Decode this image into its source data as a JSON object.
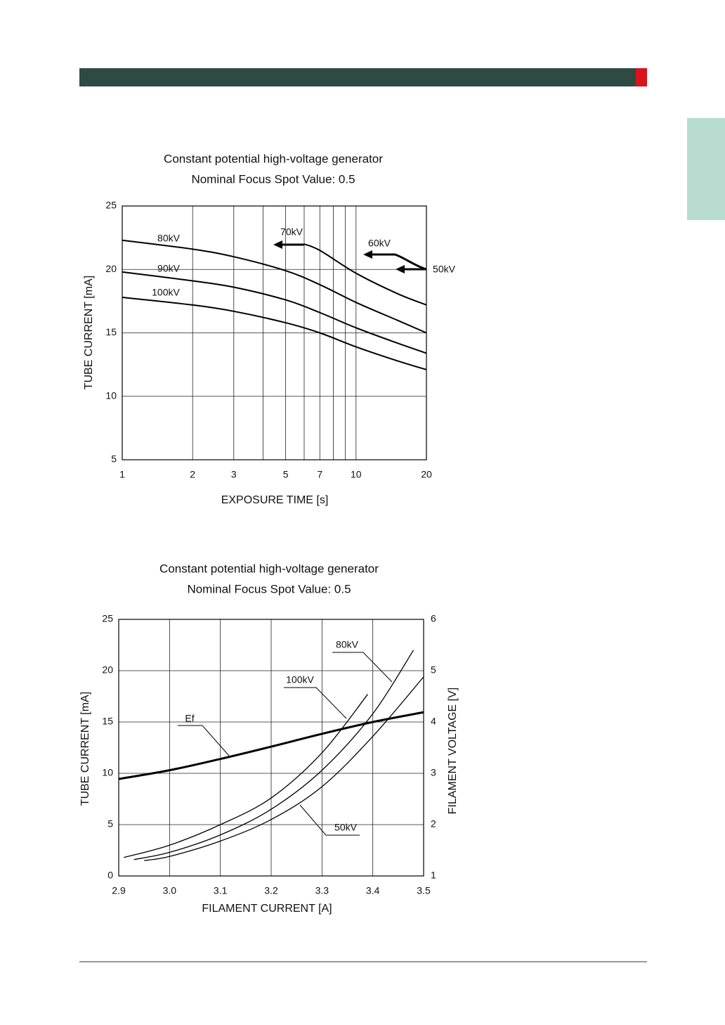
{
  "chart_data": [
    {
      "type": "line",
      "title": "Constant potential high-voltage generator",
      "subtitle": "Nominal Focus Spot Value: 0.5",
      "xlabel": "EXPOSURE TIME  [s]",
      "ylabel": "TUBE CURRENT  [mA]",
      "xscale": "log",
      "xlim": [
        1,
        20
      ],
      "xticks": [
        1,
        2,
        3,
        5,
        7,
        10,
        20
      ],
      "x_minor_grid": [
        4,
        6,
        8,
        9
      ],
      "ylim": [
        5,
        25
      ],
      "yticks": [
        5,
        10,
        15,
        20,
        25
      ],
      "grid": true,
      "series": [
        {
          "name": "80kV",
          "color": "#000000",
          "line_width": 2,
          "x": [
            1,
            2,
            3,
            5,
            7,
            10,
            15,
            20
          ],
          "values": [
            22.3,
            21.6,
            21.0,
            19.9,
            18.8,
            17.4,
            16.0,
            15.0
          ]
        },
        {
          "name": "90kV",
          "color": "#000000",
          "line_width": 2,
          "x": [
            1,
            2,
            3,
            5,
            7,
            10,
            15,
            20
          ],
          "values": [
            19.8,
            19.1,
            18.6,
            17.6,
            16.6,
            15.4,
            14.2,
            13.4
          ]
        },
        {
          "name": "100kV",
          "color": "#000000",
          "line_width": 2,
          "x": [
            1,
            2,
            3,
            5,
            7,
            10,
            15,
            20
          ],
          "values": [
            17.8,
            17.2,
            16.7,
            15.8,
            15.0,
            13.9,
            12.8,
            12.1
          ]
        },
        {
          "name": "70kV",
          "color": "#000000",
          "line_width": 2,
          "x": [
            6,
            7,
            10,
            15,
            20
          ],
          "values": [
            22.0,
            21.5,
            19.7,
            18.1,
            17.2
          ]
        }
      ],
      "annotations": [
        "60kV",
        "50kV"
      ]
    },
    {
      "type": "line",
      "title": "Constant potential high-voltage generator",
      "subtitle": "Nominal Focus Spot Value: 0.5",
      "xlabel": "FILAMENT CURRENT  [A]",
      "ylabel": "TUBE CURRENT  [mA]",
      "y2label": "FILAMENT VOLTAGE  [V]",
      "xlim": [
        2.9,
        3.5
      ],
      "xticks": [
        2.9,
        {
          "value": 3,
          "label": "3.0"
        },
        3.1,
        3.2,
        3.3,
        3.4,
        3.5
      ],
      "ylim": [
        0,
        25
      ],
      "yticks": [
        0,
        5,
        10,
        15,
        20,
        25
      ],
      "y2lim": [
        1,
        6
      ],
      "y2ticks": [
        1,
        2,
        3,
        4,
        5,
        6
      ],
      "grid": true,
      "series": [
        {
          "name": "100kV",
          "color": "#000000",
          "line_width": 1.3,
          "x": [
            2.91,
            3.0,
            3.1,
            3.2,
            3.3,
            3.39
          ],
          "values": [
            1.8,
            3.0,
            5.0,
            7.6,
            12.0,
            17.7
          ]
        },
        {
          "name": "80kV",
          "color": "#000000",
          "line_width": 1.3,
          "x": [
            2.93,
            3.0,
            3.1,
            3.2,
            3.3,
            3.4,
            3.48
          ],
          "values": [
            1.6,
            2.3,
            4.0,
            6.5,
            10.3,
            15.8,
            22.0
          ]
        },
        {
          "name": "50kV",
          "color": "#000000",
          "line_width": 1.3,
          "x": [
            2.95,
            3.0,
            3.1,
            3.2,
            3.3,
            3.4,
            3.5
          ],
          "values": [
            1.5,
            1.9,
            3.4,
            5.5,
            8.7,
            13.6,
            19.4
          ]
        },
        {
          "name": "Ef",
          "color": "#000000",
          "line_width": 3,
          "axis": "y2",
          "x": [
            2.9,
            3.0,
            3.1,
            3.2,
            3.3,
            3.4,
            3.5
          ],
          "values": [
            2.89,
            3.06,
            3.28,
            3.52,
            3.77,
            4.0,
            4.19
          ]
        }
      ]
    }
  ]
}
